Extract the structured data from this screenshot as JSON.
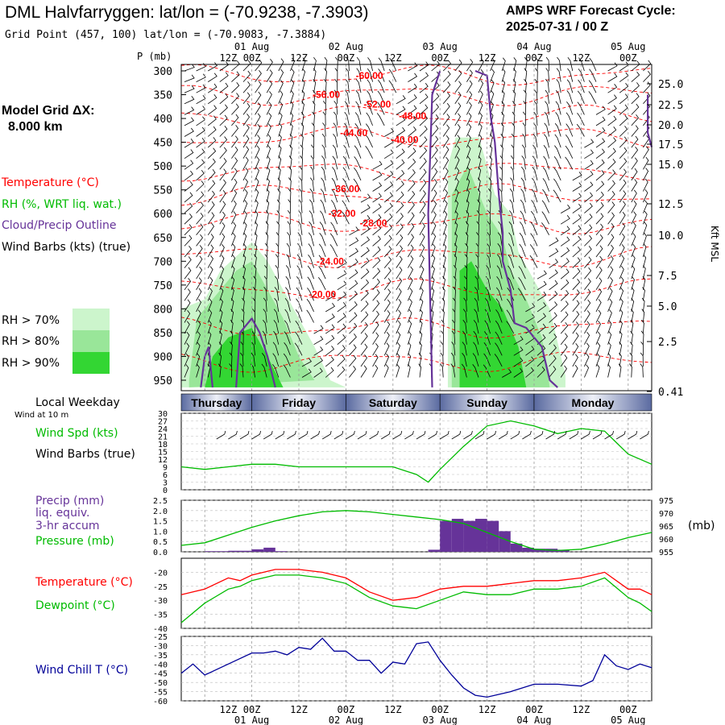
{
  "header": {
    "title": "DML Halvfarryggen:  lat/lon = (-70.9238, -7.3903)",
    "grid_point": "Grid Point (457, 100) lat/lon = (-70.9083, -7.3884)",
    "cycle_label": "AMPS WRF Forecast Cycle:",
    "cycle_value": "2025-07-31 / 00  Z"
  },
  "sidebar": {
    "grid_label": "Model Grid ΔX:",
    "grid_value": "8.000 km",
    "legend_temperature": "Temperature (°C)",
    "legend_rh": "RH (%, WRT liq. wat.)",
    "legend_cloud": "Cloud/Precip Outline",
    "legend_wind": "Wind Barbs (kts) (true)",
    "rh_70": "RH > 70%",
    "rh_80": "RH > 80%",
    "rh_90": "RH > 90%"
  },
  "colors": {
    "temperature": "#ff0000",
    "rh70": "#ccf5cc",
    "rh80": "#99e699",
    "rh90": "#33d633",
    "cloud_outline": "#663399",
    "wind": "#000000",
    "windspeed": "#00bb00",
    "precip": "#663399",
    "pressure": "#00bb00",
    "windchill": "#000099",
    "weekday_band": "#5a6aa0"
  },
  "time_axis": {
    "p_label": "P (mb)",
    "top_dates": [
      "01 Aug",
      "02 Aug",
      "03 Aug",
      "04 Aug",
      "05 Aug"
    ],
    "top_hours": [
      "12Z",
      "00Z",
      "12Z",
      "00Z",
      "12Z",
      "00Z",
      "12Z",
      "00Z",
      "12Z",
      "00Z"
    ],
    "bottom_hours": [
      "12Z",
      "00Z",
      "12Z",
      "00Z",
      "12Z",
      "00Z",
      "12Z",
      "00Z",
      "12Z",
      "00Z"
    ],
    "bottom_dates": [
      "01 Aug",
      "02 Aug",
      "03 Aug",
      "04 Aug",
      "05 Aug"
    ]
  },
  "weekday": {
    "label": "Local Weekday",
    "wind_note": "Wind at 10 m",
    "days": [
      "Thursday",
      "Friday",
      "Saturday",
      "Sunday",
      "Monday"
    ]
  },
  "labels": {
    "wind_spd": "Wind Spd (kts)",
    "wind_barbs": "Wind Barbs (true)",
    "precip": "Precip (mm)",
    "liq_equiv": "liq. equiv.",
    "accum": "3-hr accum",
    "pressure": "Pressure (mb)",
    "pressure_unit": "(mb)",
    "temperature": "Temperature (°C)",
    "dewpoint": "Dewpoint (°C)",
    "windchill": "Wind Chill T (°C)",
    "kft": "Kft MSL"
  },
  "chart_data": [
    {
      "type": "area",
      "panel": "cross-section",
      "x_range_hours": [
        -18,
        102
      ],
      "pressure_ticks": [
        "300",
        "350",
        "400",
        "450",
        "500",
        "550",
        "600",
        "650",
        "700",
        "750",
        "800",
        "850",
        "900",
        "950"
      ],
      "height_ticks": [
        "25.0",
        "22.5",
        "20.0",
        "17.5",
        "15.0",
        "12.5",
        "10.0",
        "7.5",
        "5.0",
        "2.5",
        "0.41"
      ],
      "temperature_contour_labels": [
        {
          "text": "-60.00",
          "hour": 30,
          "p": 310
        },
        {
          "text": "-56.00",
          "hour": 19,
          "p": 350
        },
        {
          "text": "-52.00",
          "hour": 32,
          "p": 370
        },
        {
          "text": "-48.00",
          "hour": 41,
          "p": 395
        },
        {
          "text": "-44.00",
          "hour": 26,
          "p": 430
        },
        {
          "text": "-40.00",
          "hour": 39,
          "p": 445
        },
        {
          "text": "-36.00",
          "hour": 24,
          "p": 548
        },
        {
          "text": "-32.00",
          "hour": 23,
          "p": 600
        },
        {
          "text": "-28.00",
          "hour": 31,
          "p": 620
        },
        {
          "text": "-24.00",
          "hour": 20,
          "p": 700
        },
        {
          "text": "-20.00",
          "hour": 18,
          "p": 770
        }
      ],
      "rh_regions": [
        {
          "level": 70,
          "points": [
            [
              -18,
              950
            ],
            [
              -18,
              800
            ],
            [
              -12,
              780
            ],
            [
              -8,
              720
            ],
            [
              -4,
              690
            ],
            [
              0,
              660
            ],
            [
              4,
              700
            ],
            [
              8,
              760
            ],
            [
              12,
              820
            ],
            [
              16,
              880
            ],
            [
              20,
              950
            ],
            [
              24,
              965
            ],
            [
              -18,
              965
            ]
          ]
        },
        {
          "level": 70,
          "points": [
            [
              50,
              965
            ],
            [
              50,
              500
            ],
            [
              52,
              440
            ],
            [
              58,
              440
            ],
            [
              62,
              560
            ],
            [
              66,
              600
            ],
            [
              68,
              680
            ],
            [
              72,
              740
            ],
            [
              76,
              800
            ],
            [
              80,
              940
            ],
            [
              80,
              965
            ]
          ]
        },
        {
          "level": 80,
          "points": [
            [
              -16,
              950
            ],
            [
              -14,
              820
            ],
            [
              -8,
              760
            ],
            [
              -4,
              720
            ],
            [
              0,
              700
            ],
            [
              4,
              760
            ],
            [
              8,
              820
            ],
            [
              12,
              900
            ],
            [
              16,
              950
            ],
            [
              -16,
              965
            ]
          ]
        },
        {
          "level": 80,
          "points": [
            [
              51,
              965
            ],
            [
              51,
              560
            ],
            [
              55,
              500
            ],
            [
              60,
              600
            ],
            [
              64,
              650
            ],
            [
              66,
              720
            ],
            [
              70,
              780
            ],
            [
              74,
              860
            ],
            [
              76,
              965
            ]
          ]
        },
        {
          "level": 90,
          "points": [
            [
              -12,
              965
            ],
            [
              -10,
              900
            ],
            [
              -6,
              860
            ],
            [
              0,
              840
            ],
            [
              4,
              900
            ],
            [
              8,
              965
            ]
          ]
        },
        {
          "level": 90,
          "points": [
            [
              53,
              965
            ],
            [
              53,
              720
            ],
            [
              56,
              700
            ],
            [
              60,
              760
            ],
            [
              64,
              800
            ],
            [
              68,
              880
            ],
            [
              70,
              965
            ]
          ]
        }
      ],
      "cloud_outline": [
        {
          "points": [
            [
              -13,
              965
            ],
            [
              -12,
              900
            ],
            [
              -11,
              880
            ],
            [
              -10,
              965
            ]
          ]
        },
        {
          "points": [
            [
              -4,
              965
            ],
            [
              -3,
              850
            ],
            [
              0,
              820
            ],
            [
              2,
              850
            ],
            [
              4,
              900
            ],
            [
              6,
              965
            ]
          ]
        },
        {
          "points": [
            [
              46,
              965
            ],
            [
              45,
              600
            ],
            [
              46,
              350
            ],
            [
              48,
              300
            ]
          ]
        },
        {
          "points": [
            [
              57,
              300
            ],
            [
              60,
              310
            ],
            [
              61,
              400
            ],
            [
              62,
              450
            ],
            [
              63,
              560
            ],
            [
              64,
              640
            ],
            [
              64,
              700
            ],
            [
              66,
              760
            ],
            [
              67,
              830
            ],
            [
              70,
              840
            ],
            [
              74,
              880
            ],
            [
              76,
              950
            ],
            [
              78,
              965
            ]
          ]
        },
        {
          "points": [
            [
              101,
              350
            ],
            [
              101,
              430
            ],
            [
              102,
              460
            ]
          ]
        }
      ]
    },
    {
      "type": "line",
      "panel": "wind speed",
      "ylim": [
        0,
        30
      ],
      "yticks": [
        "30",
        "27",
        "24",
        "21",
        "18",
        "15",
        "12",
        "9",
        "6",
        "3",
        "0"
      ],
      "x_hours": [
        -18,
        -12,
        -6,
        0,
        6,
        12,
        18,
        24,
        30,
        36,
        42,
        45,
        48,
        54,
        60,
        66,
        72,
        78,
        84,
        90,
        96,
        102
      ],
      "values": [
        9,
        8,
        9,
        10,
        10,
        9,
        9,
        9,
        9,
        9,
        6,
        3,
        8,
        17,
        25,
        27,
        25,
        22,
        24,
        23,
        14,
        10
      ]
    },
    {
      "type": "bar",
      "panel": "precip and pressure",
      "precip_ylim": [
        0,
        2.5
      ],
      "precip_yticks": [
        "2.5",
        "2.0",
        "1.5",
        "1.0",
        "0.5",
        "0.0"
      ],
      "pressure_ylim": [
        955,
        975
      ],
      "pressure_yticks": [
        "975",
        "970",
        "965",
        "960",
        "955"
      ],
      "precip_x_hours": [
        -12,
        -9,
        -6,
        -3,
        0,
        3,
        6,
        45,
        48,
        51,
        54,
        57,
        60,
        63,
        66,
        69,
        72,
        75,
        78
      ],
      "precip_values": [
        0.03,
        0.03,
        0.05,
        0.05,
        0.12,
        0.2,
        0.03,
        0.1,
        1.5,
        1.6,
        1.5,
        1.6,
        1.5,
        1.0,
        0.4,
        0.2,
        0.15,
        0.15,
        0.1
      ],
      "pressure_x_hours": [
        -18,
        -12,
        -6,
        0,
        6,
        12,
        18,
        24,
        30,
        36,
        42,
        48,
        54,
        60,
        66,
        72,
        78,
        84,
        90,
        96,
        102
      ],
      "pressure_values": [
        957.5,
        958.5,
        961.5,
        964.5,
        967,
        969,
        970.5,
        971,
        970.5,
        969.5,
        968.5,
        967.5,
        966,
        962.5,
        959,
        956,
        955.5,
        956,
        958,
        960.5,
        962.5
      ]
    },
    {
      "type": "line",
      "panel": "temperature and dewpoint",
      "ylim": [
        -40,
        -15
      ],
      "yticks": [
        "-20",
        "-25",
        "-30",
        "-35",
        "-40"
      ],
      "x_hours": [
        -18,
        -12,
        -6,
        -3,
        0,
        6,
        12,
        18,
        24,
        30,
        36,
        42,
        48,
        54,
        60,
        66,
        72,
        78,
        84,
        90,
        96,
        99,
        102
      ],
      "temperature": [
        -28,
        -26,
        -22,
        -23,
        -21,
        -19,
        -19,
        -20,
        -22,
        -27,
        -30,
        -29,
        -26,
        -25,
        -25,
        -24,
        -23,
        -23,
        -22,
        -20,
        -26,
        -26,
        -28
      ],
      "dewpoint": [
        -38,
        -31,
        -26,
        -25,
        -23,
        -21,
        -21,
        -22,
        -24,
        -29,
        -32,
        -33,
        -30,
        -27,
        -28,
        -28,
        -26,
        -26,
        -25,
        -22,
        -29,
        -31,
        -34
      ]
    },
    {
      "type": "line",
      "panel": "wind chill",
      "ylim": [
        -60,
        -25
      ],
      "yticks": [
        "-25",
        "-30",
        "-35",
        "-40",
        "-45",
        "-50",
        "-55",
        "-60"
      ],
      "x_hours": [
        -18,
        -15,
        -12,
        -6,
        0,
        3,
        6,
        9,
        12,
        15,
        18,
        21,
        24,
        27,
        30,
        33,
        36,
        39,
        42,
        45,
        48,
        51,
        54,
        57,
        60,
        66,
        72,
        78,
        84,
        87,
        90,
        93,
        96,
        99,
        102
      ],
      "values": [
        -45,
        -40,
        -46,
        -40,
        -34,
        -34,
        -33,
        -35,
        -31,
        -32,
        -26,
        -33,
        -33,
        -38,
        -38,
        -45,
        -39,
        -40,
        -29,
        -28,
        -38,
        -46,
        -53,
        -57,
        -58,
        -55,
        -51,
        -51,
        -52,
        -49,
        -35,
        -41,
        -43,
        -40,
        -42
      ]
    }
  ]
}
